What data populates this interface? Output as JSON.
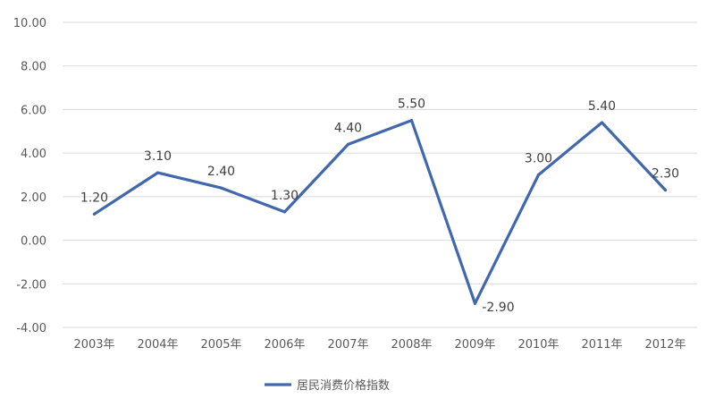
{
  "chart_data": {
    "type": "line",
    "categories": [
      "2003年",
      "2004年",
      "2005年",
      "2006年",
      "2007年",
      "2008年",
      "2009年",
      "2010年",
      "2011年",
      "2012年"
    ],
    "series": [
      {
        "name": "居民消费价格指数",
        "values": [
          1.2,
          3.1,
          2.4,
          1.3,
          4.4,
          5.5,
          -2.9,
          3.0,
          5.4,
          2.3
        ],
        "labels": [
          "1.20",
          "3.10",
          "2.40",
          "1.30",
          "4.40",
          "5.50",
          "-2.90",
          "3.00",
          "5.40",
          "2.30"
        ],
        "color": "#4167ac"
      }
    ],
    "ylim": [
      -4,
      10
    ],
    "yticks": [
      "10.00",
      "8.00",
      "6.00",
      "4.00",
      "2.00",
      "0.00",
      "-2.00",
      "-4.00"
    ],
    "grid": true,
    "legend": "bottom"
  }
}
